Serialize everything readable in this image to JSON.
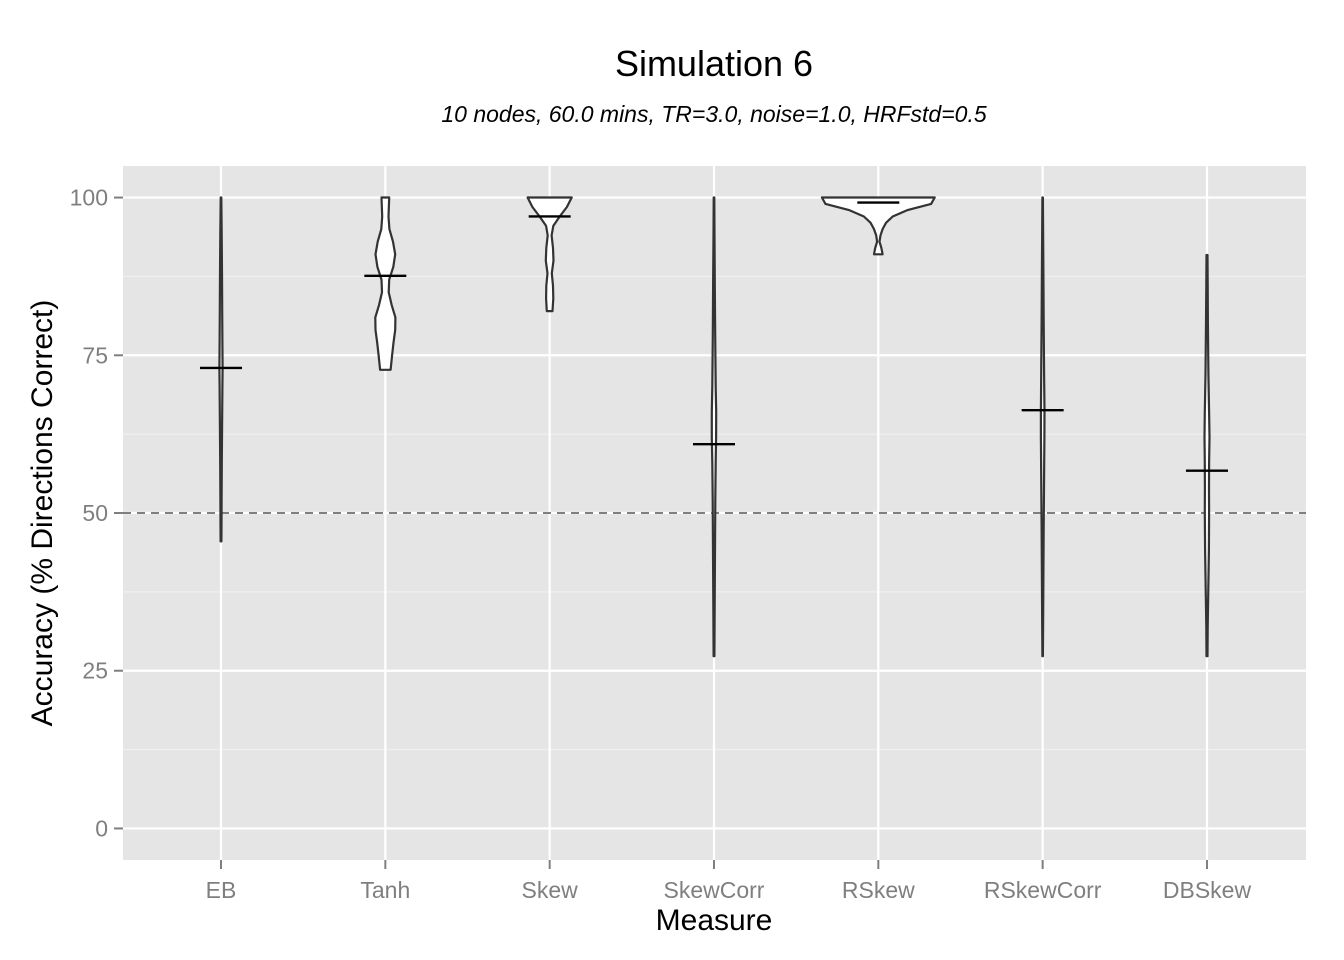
{
  "chart_data": {
    "type": "violin",
    "title": "Simulation 6",
    "subtitle": "10 nodes, 60.0 mins, TR=3.0, noise=1.0, HRFstd=0.5",
    "xlabel": "Measure",
    "ylabel": "Accuracy (% Directions Correct)",
    "categories": [
      "EB",
      "Tanh",
      "Skew",
      "SkewCorr",
      "RSkew",
      "RSkewCorr",
      "DBSkew"
    ],
    "ylim": [
      -5,
      105
    ],
    "yticks": [
      0,
      25,
      50,
      75,
      100
    ],
    "ytick_labels": [
      "0",
      "25",
      "50",
      "75",
      "100"
    ],
    "reference_line": {
      "y": 50,
      "style": "dashed"
    },
    "violins": [
      {
        "category": "EB",
        "min": 45.5,
        "max": 100,
        "mean": 73,
        "profile": [
          [
            45.5,
            0.15
          ],
          [
            48,
            0.2
          ],
          [
            52,
            0.25
          ],
          [
            58,
            0.32
          ],
          [
            64,
            0.45
          ],
          [
            70,
            0.6
          ],
          [
            73,
            0.65
          ],
          [
            77,
            0.6
          ],
          [
            82,
            0.52
          ],
          [
            88,
            0.42
          ],
          [
            94,
            0.3
          ],
          [
            100,
            0.12
          ]
        ]
      },
      {
        "category": "Tanh",
        "min": 72.7,
        "max": 100,
        "mean": 87.6,
        "profile": [
          [
            72.7,
            2.2
          ],
          [
            75,
            2.8
          ],
          [
            77,
            3.4
          ],
          [
            79,
            4.1
          ],
          [
            81,
            4.2
          ],
          [
            83,
            2.6
          ],
          [
            85,
            1.4
          ],
          [
            87,
            1.6
          ],
          [
            89,
            3.3
          ],
          [
            91,
            4.1
          ],
          [
            93,
            3.2
          ],
          [
            95,
            1.7
          ],
          [
            97,
            1.3
          ],
          [
            100,
            1.6
          ]
        ]
      },
      {
        "category": "Skew",
        "min": 82,
        "max": 100,
        "mean": 97,
        "profile": [
          [
            82,
            1.2
          ],
          [
            84,
            1.5
          ],
          [
            86,
            1.4
          ],
          [
            88,
            0.9
          ],
          [
            90,
            1.6
          ],
          [
            92,
            1.4
          ],
          [
            94,
            0.8
          ],
          [
            95.5,
            1.5
          ],
          [
            97,
            4.2
          ],
          [
            98.5,
            7.2
          ],
          [
            100,
            9.2
          ]
        ]
      },
      {
        "category": "SkewCorr",
        "min": 27.3,
        "max": 100,
        "mean": 60.9,
        "profile": [
          [
            27.3,
            0.15
          ],
          [
            30,
            0.2
          ],
          [
            36,
            0.28
          ],
          [
            44,
            0.4
          ],
          [
            52,
            0.55
          ],
          [
            58,
            0.72
          ],
          [
            62,
            0.9
          ],
          [
            66,
            0.92
          ],
          [
            70,
            0.7
          ],
          [
            78,
            0.5
          ],
          [
            86,
            0.35
          ],
          [
            94,
            0.2
          ],
          [
            100,
            0.12
          ]
        ]
      },
      {
        "category": "RSkew",
        "min": 91,
        "max": 100,
        "mean": 99.2,
        "profile": [
          [
            91,
            1.8
          ],
          [
            92,
            1.3
          ],
          [
            93,
            0.5
          ],
          [
            94,
            0.9
          ],
          [
            95,
            1.8
          ],
          [
            96,
            3.2
          ],
          [
            97,
            6
          ],
          [
            98,
            12
          ],
          [
            99,
            22
          ],
          [
            100,
            23.5
          ]
        ]
      },
      {
        "category": "RSkewCorr",
        "min": 27.3,
        "max": 100,
        "mean": 66.3,
        "profile": [
          [
            27.3,
            0.12
          ],
          [
            32,
            0.18
          ],
          [
            40,
            0.3
          ],
          [
            48,
            0.45
          ],
          [
            56,
            0.6
          ],
          [
            62,
            0.72
          ],
          [
            66,
            0.75
          ],
          [
            72,
            0.6
          ],
          [
            80,
            0.45
          ],
          [
            88,
            0.3
          ],
          [
            95,
            0.18
          ],
          [
            100,
            0.12
          ]
        ]
      },
      {
        "category": "DBSkew",
        "min": 27.3,
        "max": 90.9,
        "mean": 56.7,
        "profile": [
          [
            27.3,
            0.2
          ],
          [
            32,
            0.3
          ],
          [
            38,
            0.55
          ],
          [
            44,
            0.8
          ],
          [
            50,
            0.9
          ],
          [
            54,
            0.85
          ],
          [
            58,
            0.9
          ],
          [
            62,
            1.05
          ],
          [
            66,
            0.9
          ],
          [
            72,
            0.6
          ],
          [
            80,
            0.4
          ],
          [
            86,
            0.28
          ],
          [
            90.9,
            0.2
          ]
        ]
      }
    ]
  }
}
